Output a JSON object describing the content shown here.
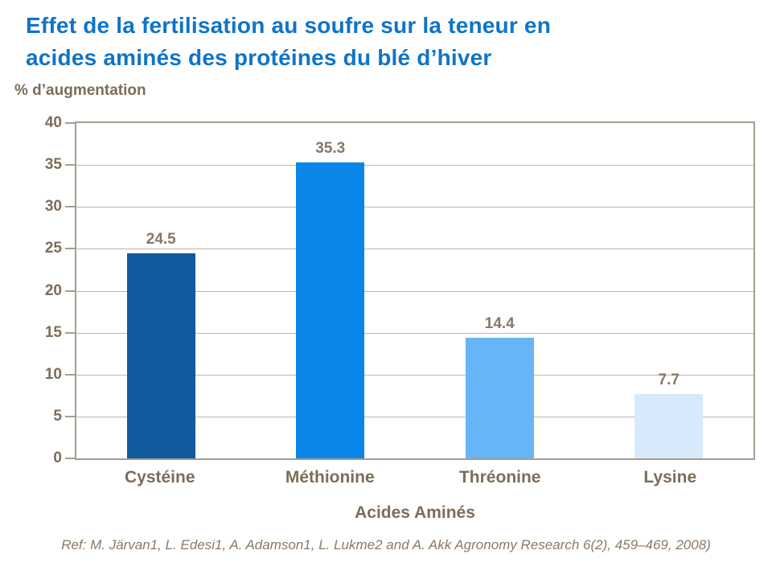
{
  "header": {
    "title_line1": "Effet de la fertilisation au soufre sur la teneur en",
    "title_line2": "acides aminés des protéines du blé d’hiver",
    "title_color": "#0F74C8"
  },
  "chart_data": {
    "type": "bar",
    "title": "Effet de la fertilisation au soufre sur la teneur en acides aminés des protéines du blé d’hiver",
    "ylabel": "% d’augmentation",
    "xlabel": "Acides Aminés",
    "categories": [
      "Cystéine",
      "Méthionine",
      "Thréonine",
      "Lysine"
    ],
    "values": [
      24.5,
      35.3,
      14.4,
      7.7
    ],
    "value_labels": [
      "24.5",
      "35.3",
      "14.4",
      "7.7"
    ],
    "bar_colors": [
      "#0F5B9E",
      "#0A86E8",
      "#66B5F8",
      "#D7E9FB"
    ],
    "ylim": [
      0,
      40
    ],
    "yticks": [
      0,
      5,
      10,
      15,
      20,
      25,
      30,
      35,
      40
    ],
    "grid": true,
    "legend": "none"
  },
  "footer": {
    "reference": "Ref: M. Järvan1, L. Edesi1, A. Adamson1, L. Lukme2 and A. Akk Agronomy Research 6(2), 459–469, 2008)"
  },
  "colors": {
    "axis": "#A79D8F",
    "grid": "#BDB5A9",
    "tick_text": "#7D6C58",
    "value_text": "#877763",
    "reference_text": "#8A7964"
  }
}
